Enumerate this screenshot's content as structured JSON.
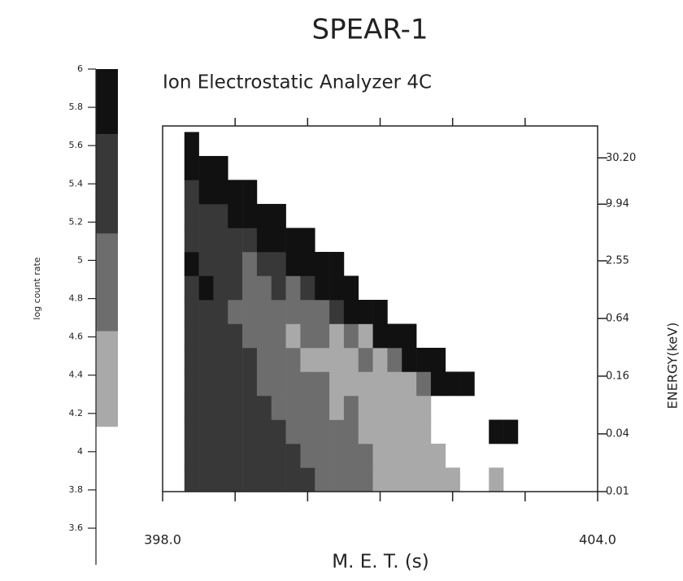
{
  "chart_data": {
    "type": "heatmap",
    "title": "SPEAR-1",
    "subtitle": "Ion Electrostatic Analyzer 4C",
    "x_label": "M. E. T. (s)",
    "y_label": "ENERGY(keV)",
    "colorbar_label": "log count rate",
    "log_y": true,
    "xlim": [
      398,
      404
    ],
    "xticks": [
      {
        "value": 398,
        "label": "398.0"
      },
      {
        "value": 404,
        "label": "404.0"
      }
    ],
    "x_minor_ticks": [
      399,
      400,
      401,
      402,
      403
    ],
    "ylim": [
      0.01,
      65
    ],
    "yticks": [
      {
        "value": 30.2,
        "label": "30.20"
      },
      9.94,
      2.55,
      0.64,
      0.16,
      0.04,
      0.01
    ],
    "clim": [
      3.6,
      6
    ],
    "cticks": [
      6,
      5.8,
      5.6,
      5.4,
      5.2,
      5,
      4.8,
      4.6,
      4.4,
      4.2,
      4,
      3.8,
      3.6
    ],
    "levels": [
      4.13,
      4.63,
      5.14,
      5.66,
      6
    ],
    "level_colors": [
      "#a9a9a9",
      "#6d6d6d",
      "#383838",
      "#111111"
    ],
    "x_edges": [
      398.3,
      398.5,
      398.7,
      398.9,
      399.1,
      399.3,
      399.5,
      399.7,
      399.9,
      400.1,
      400.3,
      400.5,
      400.7,
      400.9,
      401.1,
      401.3,
      401.5,
      401.7,
      401.9,
      402.1,
      402.3,
      402.5,
      402.7,
      402.9,
      403.1
    ],
    "y_edges": [
      0.01,
      0.0178,
      0.0316,
      0.0562,
      0.1,
      0.178,
      0.316,
      0.562,
      1,
      1.78,
      3.16,
      5.62,
      10,
      17.8,
      31.6,
      56.2
    ],
    "z": [
      [
        5.4,
        5.4,
        5.4,
        5.4,
        5.4,
        5.4,
        5.4,
        5.4,
        5.4,
        4.9,
        4.9,
        4.9,
        4.9,
        4.4,
        4.4,
        4.4,
        4.4,
        4.4,
        4.4,
        null,
        null,
        4.4,
        null,
        null
      ],
      [
        5.4,
        5.4,
        5.4,
        5.4,
        5.4,
        5.4,
        5.4,
        5.4,
        4.9,
        4.9,
        4.9,
        4.9,
        4.9,
        4.4,
        4.4,
        4.4,
        4.4,
        4.4,
        null,
        null,
        null,
        null,
        null,
        null
      ],
      [
        5.4,
        5.4,
        5.4,
        5.4,
        5.4,
        5.4,
        5.4,
        4.9,
        4.9,
        4.9,
        4.9,
        4.9,
        4.4,
        4.4,
        4.4,
        4.4,
        4.4,
        null,
        null,
        null,
        null,
        5.8,
        5.8,
        null
      ],
      [
        5.4,
        5.4,
        5.4,
        5.4,
        5.4,
        5.4,
        4.9,
        4.9,
        4.9,
        4.9,
        4.4,
        4.9,
        4.4,
        4.4,
        4.4,
        4.4,
        4.4,
        null,
        null,
        null,
        null,
        null,
        null,
        null
      ],
      [
        5.4,
        5.4,
        5.4,
        5.4,
        5.4,
        4.9,
        4.9,
        4.9,
        4.9,
        4.9,
        4.4,
        4.4,
        4.4,
        4.4,
        4.4,
        4.4,
        4.9,
        5.8,
        5.8,
        5.8,
        null,
        null,
        null,
        null
      ],
      [
        5.4,
        5.4,
        5.4,
        5.4,
        5.4,
        4.9,
        4.9,
        4.9,
        4.4,
        4.4,
        4.4,
        4.4,
        4.9,
        4.4,
        4.9,
        5.8,
        5.8,
        5.8,
        null,
        null,
        null,
        null,
        null,
        null
      ],
      [
        5.4,
        5.4,
        5.4,
        5.4,
        4.9,
        4.9,
        4.9,
        4.4,
        4.9,
        4.9,
        4.4,
        4.9,
        4.4,
        5.8,
        5.8,
        5.8,
        null,
        null,
        null,
        null,
        null,
        null,
        null,
        null
      ],
      [
        5.4,
        5.4,
        5.4,
        4.9,
        4.9,
        4.9,
        4.9,
        4.9,
        4.9,
        4.9,
        5.4,
        5.8,
        5.8,
        5.8,
        null,
        null,
        null,
        null,
        null,
        null,
        null,
        null,
        null,
        null
      ],
      [
        5.4,
        5.8,
        5.4,
        5.4,
        4.9,
        4.9,
        5.4,
        4.9,
        5.4,
        5.8,
        5.8,
        5.8,
        null,
        null,
        null,
        null,
        null,
        null,
        null,
        null,
        null,
        null,
        null,
        null
      ],
      [
        5.8,
        5.4,
        5.4,
        5.4,
        4.9,
        5.4,
        5.4,
        5.8,
        5.8,
        5.8,
        5.8,
        null,
        null,
        null,
        null,
        null,
        null,
        null,
        null,
        null,
        null,
        null,
        null,
        null
      ],
      [
        5.4,
        5.4,
        5.4,
        5.4,
        5.4,
        5.8,
        5.8,
        5.8,
        5.8,
        null,
        null,
        null,
        null,
        null,
        null,
        null,
        null,
        null,
        null,
        null,
        null,
        null,
        null,
        null
      ],
      [
        5.4,
        5.4,
        5.4,
        5.8,
        5.8,
        5.8,
        5.8,
        null,
        null,
        null,
        null,
        null,
        null,
        null,
        null,
        null,
        null,
        null,
        null,
        null,
        null,
        null,
        null,
        null
      ],
      [
        5.4,
        5.8,
        5.8,
        5.8,
        5.8,
        null,
        null,
        null,
        null,
        null,
        null,
        null,
        null,
        null,
        null,
        null,
        null,
        null,
        null,
        null,
        null,
        null,
        null,
        null
      ],
      [
        5.8,
        5.8,
        5.8,
        null,
        null,
        null,
        null,
        null,
        null,
        null,
        null,
        null,
        null,
        null,
        null,
        null,
        null,
        null,
        null,
        null,
        null,
        null,
        null,
        null
      ],
      [
        5.8,
        null,
        null,
        null,
        null,
        null,
        null,
        null,
        null,
        null,
        null,
        null,
        null,
        null,
        null,
        null,
        null,
        null,
        null,
        null,
        null,
        null,
        null,
        null
      ]
    ]
  }
}
